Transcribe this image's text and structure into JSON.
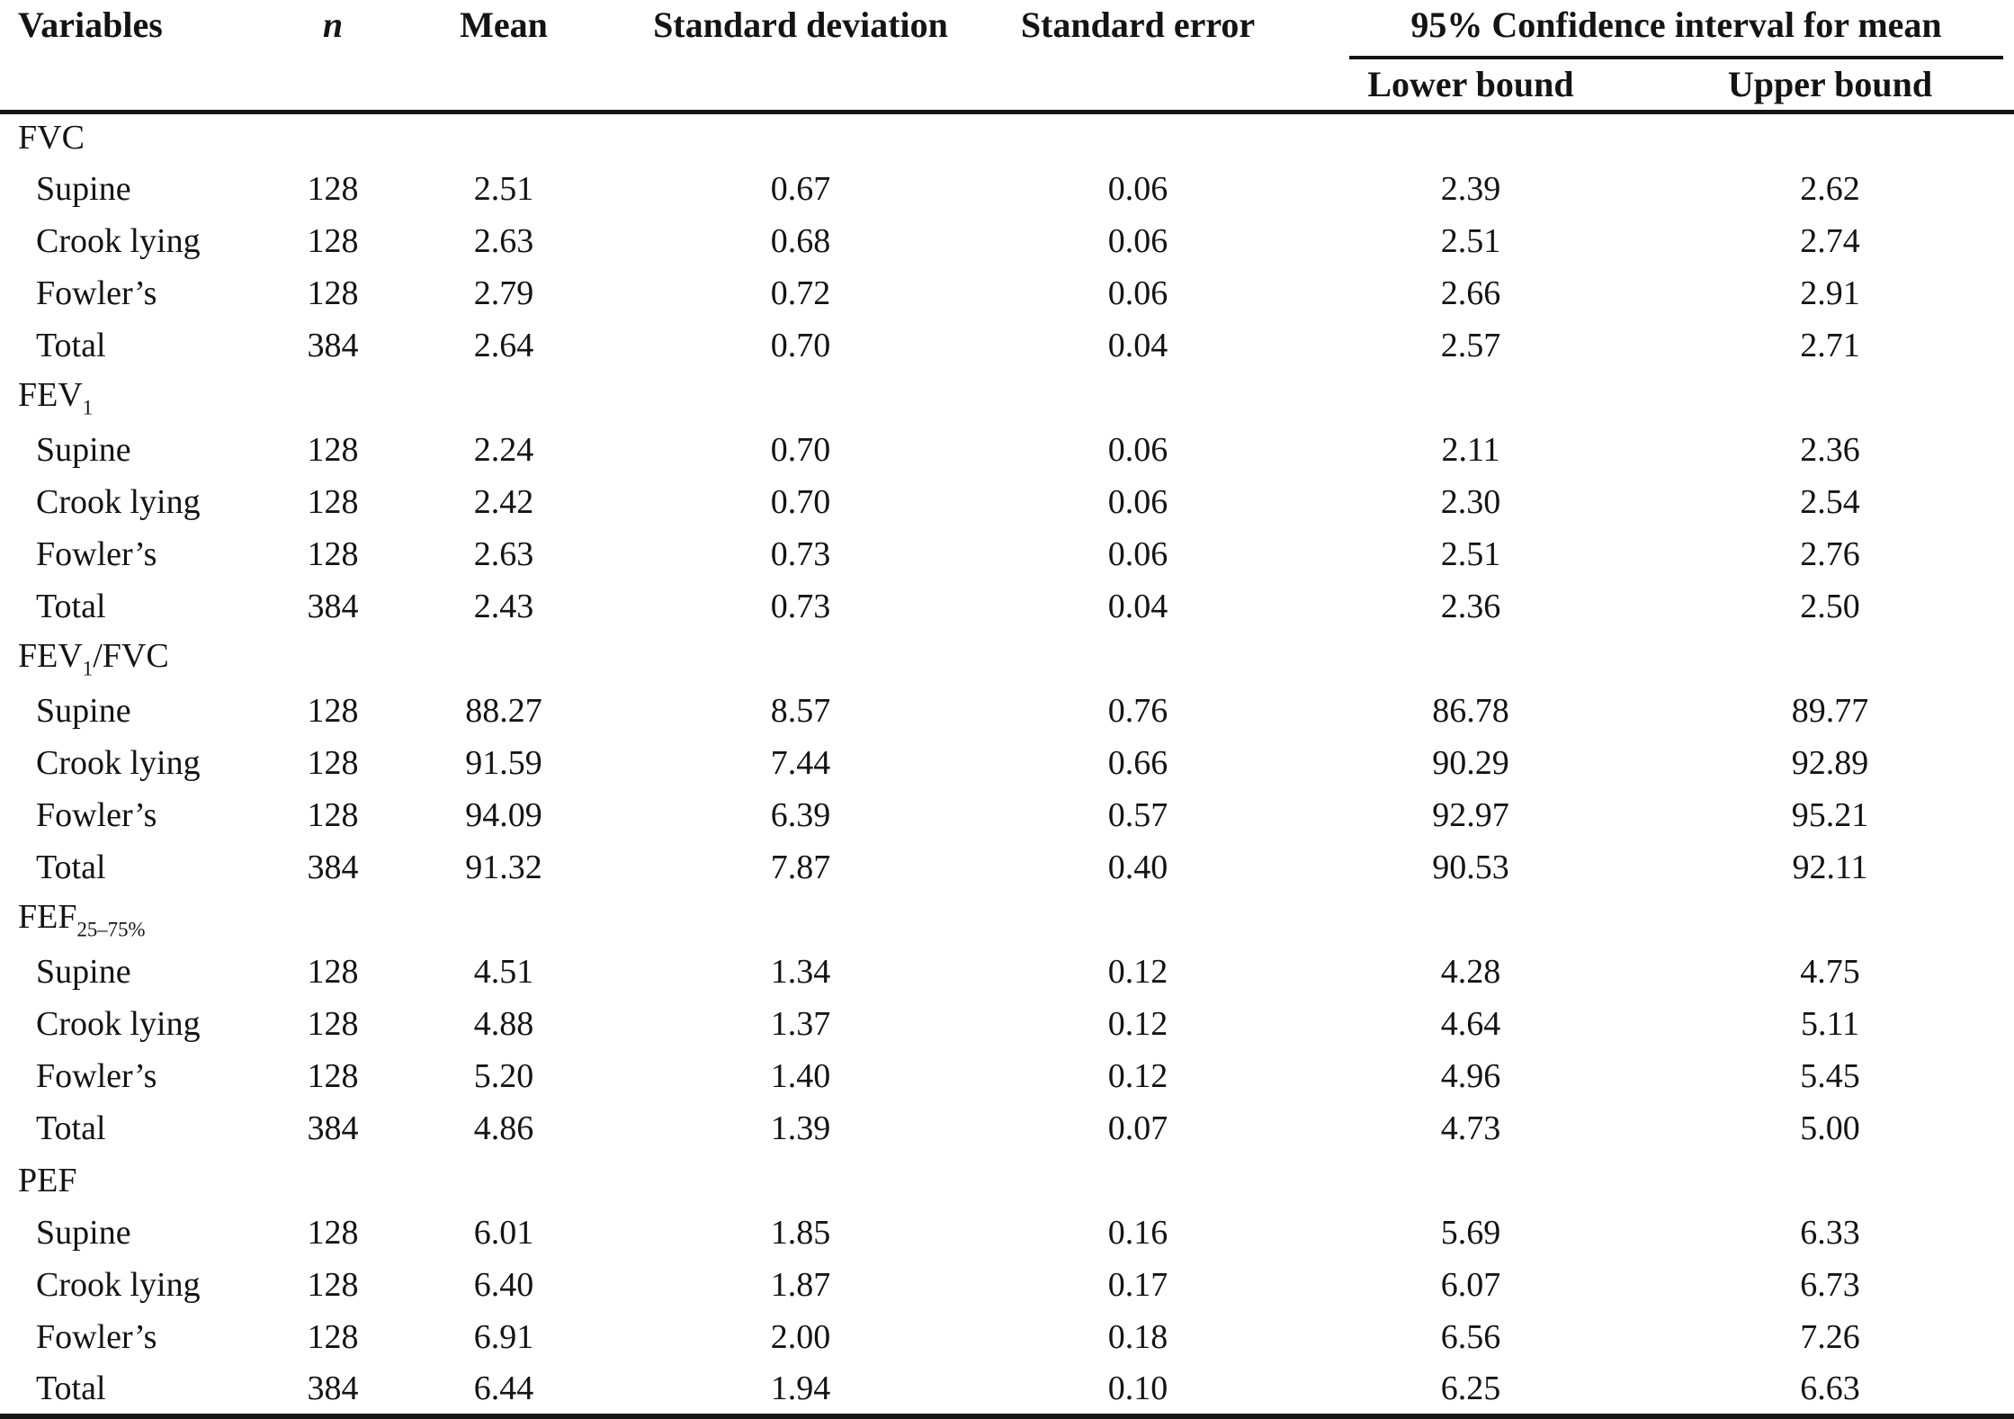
{
  "header": {
    "variables": "Variables",
    "n": "n",
    "mean": "Mean",
    "sd": "Standard deviation",
    "se": "Standard error",
    "ci": "95% Confidence interval for mean",
    "ci_lower": "Lower bound",
    "ci_upper": "Upper bound"
  },
  "sections": [
    {
      "label": [
        {
          "text": "FVC"
        }
      ],
      "rows": [
        {
          "variable": "Supine",
          "n": "128",
          "mean": "2.51",
          "sd": "0.67",
          "se": "0.06",
          "lower": "2.39",
          "upper": "2.62"
        },
        {
          "variable": "Crook lying",
          "n": "128",
          "mean": "2.63",
          "sd": "0.68",
          "se": "0.06",
          "lower": "2.51",
          "upper": "2.74"
        },
        {
          "variable": "Fowler’s",
          "n": "128",
          "mean": "2.79",
          "sd": "0.72",
          "se": "0.06",
          "lower": "2.66",
          "upper": "2.91"
        },
        {
          "variable": "Total",
          "n": "384",
          "mean": "2.64",
          "sd": "0.70",
          "se": "0.04",
          "lower": "2.57",
          "upper": "2.71"
        }
      ]
    },
    {
      "label": [
        {
          "text": "FEV",
          "sub": "1"
        }
      ],
      "rows": [
        {
          "variable": "Supine",
          "n": "128",
          "mean": "2.24",
          "sd": "0.70",
          "se": "0.06",
          "lower": "2.11",
          "upper": "2.36"
        },
        {
          "variable": "Crook lying",
          "n": "128",
          "mean": "2.42",
          "sd": "0.70",
          "se": "0.06",
          "lower": "2.30",
          "upper": "2.54"
        },
        {
          "variable": "Fowler’s",
          "n": "128",
          "mean": "2.63",
          "sd": "0.73",
          "se": "0.06",
          "lower": "2.51",
          "upper": "2.76"
        },
        {
          "variable": "Total",
          "n": "384",
          "mean": "2.43",
          "sd": "0.73",
          "se": "0.04",
          "lower": "2.36",
          "upper": "2.50"
        }
      ]
    },
    {
      "label": [
        {
          "text": "FEV",
          "sub": "1"
        },
        {
          "text": "/FVC"
        }
      ],
      "rows": [
        {
          "variable": "Supine",
          "n": "128",
          "mean": "88.27",
          "sd": "8.57",
          "se": "0.76",
          "lower": "86.78",
          "upper": "89.77"
        },
        {
          "variable": "Crook lying",
          "n": "128",
          "mean": "91.59",
          "sd": "7.44",
          "se": "0.66",
          "lower": "90.29",
          "upper": "92.89"
        },
        {
          "variable": "Fowler’s",
          "n": "128",
          "mean": "94.09",
          "sd": "6.39",
          "se": "0.57",
          "lower": "92.97",
          "upper": "95.21"
        },
        {
          "variable": "Total",
          "n": "384",
          "mean": "91.32",
          "sd": "7.87",
          "se": "0.40",
          "lower": "90.53",
          "upper": "92.11"
        }
      ]
    },
    {
      "label": [
        {
          "text": "FEF",
          "sub": "25–75%"
        }
      ],
      "rows": [
        {
          "variable": "Supine",
          "n": "128",
          "mean": "4.51",
          "sd": "1.34",
          "se": "0.12",
          "lower": "4.28",
          "upper": "4.75"
        },
        {
          "variable": "Crook lying",
          "n": "128",
          "mean": "4.88",
          "sd": "1.37",
          "se": "0.12",
          "lower": "4.64",
          "upper": "5.11"
        },
        {
          "variable": "Fowler’s",
          "n": "128",
          "mean": "5.20",
          "sd": "1.40",
          "se": "0.12",
          "lower": "4.96",
          "upper": "5.45"
        },
        {
          "variable": "Total",
          "n": "384",
          "mean": "4.86",
          "sd": "1.39",
          "se": "0.07",
          "lower": "4.73",
          "upper": "5.00"
        }
      ]
    },
    {
      "label": [
        {
          "text": "PEF"
        }
      ],
      "rows": [
        {
          "variable": "Supine",
          "n": "128",
          "mean": "6.01",
          "sd": "1.85",
          "se": "0.16",
          "lower": "5.69",
          "upper": "6.33"
        },
        {
          "variable": "Crook lying",
          "n": "128",
          "mean": "6.40",
          "sd": "1.87",
          "se": "0.17",
          "lower": "6.07",
          "upper": "6.73"
        },
        {
          "variable": "Fowler’s",
          "n": "128",
          "mean": "6.91",
          "sd": "2.00",
          "se": "0.18",
          "lower": "6.56",
          "upper": "7.26"
        },
        {
          "variable": "Total",
          "n": "384",
          "mean": "6.44",
          "sd": "1.94",
          "se": "0.10",
          "lower": "6.25",
          "upper": "6.63"
        }
      ]
    }
  ]
}
